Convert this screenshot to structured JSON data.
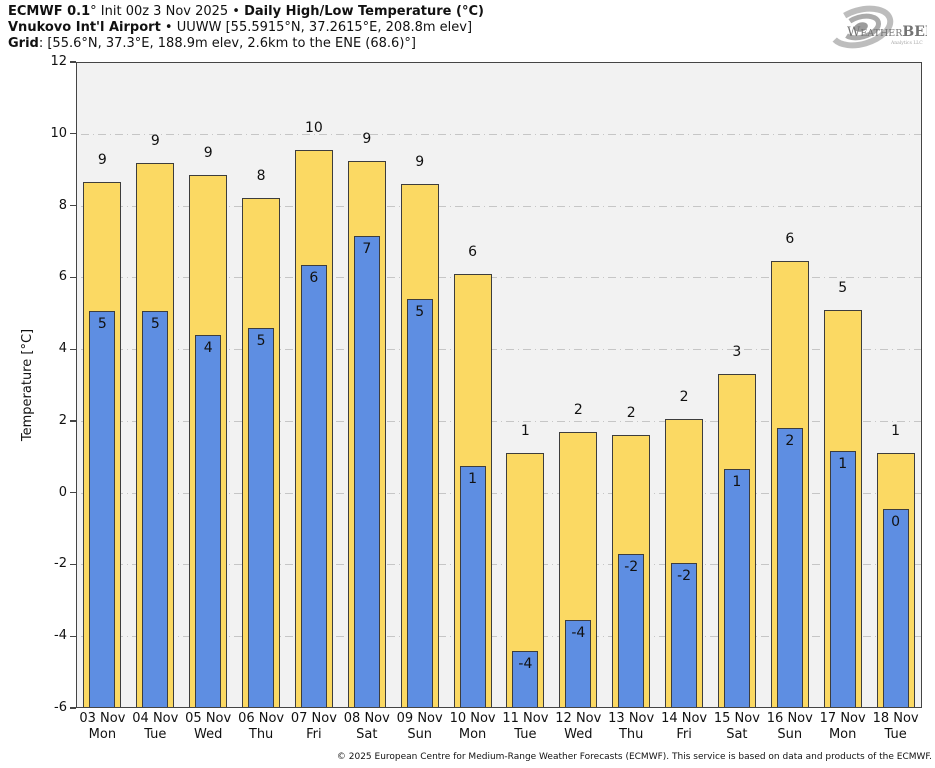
{
  "header": {
    "line1": {
      "model": "ECMWF 0.1",
      "init": "° Init 00z 3 Nov 2025 • ",
      "product": "Daily High/Low Temperature (°C)"
    },
    "line2": {
      "station": "Vnukovo Int'l Airport",
      "station_meta": " • UUWW [55.5915°N, 37.2615°E, 208.8m elev]"
    },
    "line3": {
      "grid": "Grid",
      "grid_meta": ": [55.6°N, 37.3°E, 188.9m elev, 2.6km to the ENE (68.6)°]"
    }
  },
  "logo": {
    "w": "W",
    "eather": "EATHER",
    "bell": "BELL",
    "subtext": "Analytics LLC"
  },
  "footer": {
    "copyright": "© 2025 European Centre for Medium-Range Weather Forecasts (ECMWF). This service is based on data and products of the ECMWF."
  },
  "chart_data": {
    "type": "bar",
    "title": "Daily High/Low Temperature (°C)",
    "ylabel": "Temperature [°C]",
    "ylim": [
      -6,
      12
    ],
    "ytick_step": 2,
    "grid": "horizontal dash-dot, drawn behind bars",
    "legend": "none",
    "plot_bg": "#f2f2f2",
    "bar_border": "#3d3d3d",
    "categories": [
      {
        "date": "03 Nov",
        "dow": "Mon"
      },
      {
        "date": "04 Nov",
        "dow": "Tue"
      },
      {
        "date": "05 Nov",
        "dow": "Wed"
      },
      {
        "date": "06 Nov",
        "dow": "Thu"
      },
      {
        "date": "07 Nov",
        "dow": "Fri"
      },
      {
        "date": "08 Nov",
        "dow": "Sat"
      },
      {
        "date": "09 Nov",
        "dow": "Sun"
      },
      {
        "date": "10 Nov",
        "dow": "Mon"
      },
      {
        "date": "11 Nov",
        "dow": "Tue"
      },
      {
        "date": "12 Nov",
        "dow": "Wed"
      },
      {
        "date": "13 Nov",
        "dow": "Thu"
      },
      {
        "date": "14 Nov",
        "dow": "Fri"
      },
      {
        "date": "15 Nov",
        "dow": "Sat"
      },
      {
        "date": "16 Nov",
        "dow": "Sun"
      },
      {
        "date": "17 Nov",
        "dow": "Mon"
      },
      {
        "date": "18 Nov",
        "dow": "Tue"
      }
    ],
    "series": [
      {
        "name": "High",
        "color": "#fbd963",
        "labels": [
          "9",
          "9",
          "9",
          "8",
          "10",
          "9",
          "9",
          "6",
          "1",
          "2",
          "2",
          "2",
          "3",
          "6",
          "5",
          "1"
        ],
        "values": [
          8.65,
          9.2,
          8.85,
          8.2,
          9.55,
          9.25,
          8.6,
          6.1,
          1.1,
          1.7,
          1.6,
          2.05,
          3.3,
          6.45,
          5.1,
          1.1
        ]
      },
      {
        "name": "Low",
        "color": "#5e8ee2",
        "labels": [
          "5",
          "5",
          "4",
          "5",
          "6",
          "7",
          "5",
          "1",
          "-4",
          "-4",
          "-2",
          "-2",
          "1",
          "2",
          "1",
          "0"
        ],
        "values": [
          5.05,
          5.05,
          4.4,
          4.6,
          6.35,
          7.15,
          5.4,
          0.75,
          -4.4,
          -3.55,
          -1.7,
          -1.95,
          0.65,
          1.8,
          1.15,
          -0.45
        ]
      }
    ]
  }
}
